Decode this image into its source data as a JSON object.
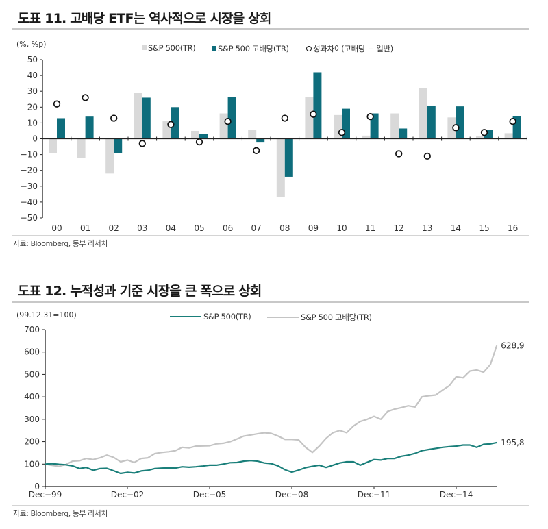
{
  "figure1": {
    "title": "도표 11. 고배당 ETF는 역사적으로 시장을 상회",
    "unit_label": "(%, %p)",
    "source": "자료: Bloomberg, 동부 리서치"
  },
  "figure2": {
    "title": "도표 12. 누적성과 기준 시장을 큰 폭으로 상회",
    "unit_label": "(99.12.31=100)",
    "source": "자료: Bloomberg, 동부 리서치"
  },
  "colors": {
    "sp500": "#d9d9d9",
    "high_dividend": "#0e6d7c",
    "line_sp500": "#1a7f7a",
    "line_high_dividend": "#c4c4c4"
  },
  "chart_data": [
    {
      "type": "bar",
      "title": "도표 11. 고배당 ETF는 역사적으로 시장을 상회",
      "ylabel": "(%, %p)",
      "xlabel": "",
      "ylim": [
        -50,
        50
      ],
      "yticks": [
        50,
        40,
        30,
        20,
        10,
        0,
        -10,
        -20,
        -30,
        -40,
        -50
      ],
      "ytick_labels": [
        "50",
        "40",
        "30",
        "20",
        "10",
        "0",
        "−10",
        "−20",
        "−30",
        "−40",
        "−50"
      ],
      "grid": false,
      "legend_position": "top",
      "categories": [
        "00",
        "01",
        "02",
        "03",
        "04",
        "05",
        "06",
        "07",
        "08",
        "09",
        "10",
        "11",
        "12",
        "13",
        "14",
        "15",
        "16"
      ],
      "series": [
        {
          "name": "S&P 500(TR)",
          "kind": "bar",
          "values": [
            -9,
            -12,
            -22,
            29,
            11,
            5,
            16,
            5.5,
            -37,
            26.5,
            15,
            2,
            16,
            32,
            13.5,
            1.5,
            3.5
          ]
        },
        {
          "name": "S&P 500 고배당(TR)",
          "kind": "bar",
          "values": [
            13,
            14,
            -9,
            26,
            20,
            3,
            26.5,
            -2,
            -24,
            42,
            19,
            16,
            6.5,
            21,
            20.5,
            5.5,
            14.5
          ]
        },
        {
          "name": "성과차이(고배당 − 일반)",
          "kind": "scatter",
          "values": [
            22,
            26,
            13,
            -3,
            9,
            -2,
            11,
            -7.5,
            13,
            15.5,
            4,
            14,
            -9.5,
            -11,
            7,
            4,
            11
          ]
        }
      ]
    },
    {
      "type": "line",
      "title": "도표 12. 누적성과 기준 시장을 큰 폭으로 상회",
      "ylabel": "(99.12.31=100)",
      "xlabel": "",
      "ylim": [
        0,
        700
      ],
      "yticks": [
        0,
        100,
        200,
        300,
        400,
        500,
        600,
        700
      ],
      "xtick_labels": [
        "Dec−99",
        "Dec−02",
        "Dec−05",
        "Dec−08",
        "Dec−11",
        "Dec−14"
      ],
      "x_range_years": [
        1999.92,
        2016.4
      ],
      "grid": false,
      "legend_position": "top",
      "x": [
        1999.92,
        2000.17,
        2000.42,
        2000.67,
        2000.92,
        2001.17,
        2001.42,
        2001.67,
        2001.92,
        2002.17,
        2002.42,
        2002.67,
        2002.92,
        2003.17,
        2003.42,
        2003.67,
        2003.92,
        2004.17,
        2004.42,
        2004.67,
        2004.92,
        2005.17,
        2005.42,
        2005.67,
        2005.92,
        2006.17,
        2006.42,
        2006.67,
        2006.92,
        2007.17,
        2007.42,
        2007.67,
        2007.92,
        2008.17,
        2008.42,
        2008.67,
        2008.92,
        2009.17,
        2009.42,
        2009.67,
        2009.92,
        2010.17,
        2010.42,
        2010.67,
        2010.92,
        2011.17,
        2011.42,
        2011.67,
        2011.92,
        2012.17,
        2012.42,
        2012.67,
        2012.92,
        2013.17,
        2013.42,
        2013.67,
        2013.92,
        2014.17,
        2014.42,
        2014.67,
        2014.92,
        2015.17,
        2015.42,
        2015.67,
        2015.92,
        2016.17,
        2016.4
      ],
      "series": [
        {
          "name": "S&P 500(TR)",
          "end_label": "195.8",
          "values": [
            100,
            102,
            99,
            97,
            92,
            80,
            85,
            72,
            80,
            81,
            70,
            58,
            63,
            60,
            69,
            72,
            80,
            82,
            83,
            82,
            88,
            86,
            88,
            91,
            95,
            95,
            100,
            106,
            107,
            113,
            116,
            113,
            105,
            102,
            92,
            75,
            64,
            73,
            84,
            90,
            95,
            85,
            95,
            105,
            110,
            110,
            95,
            108,
            120,
            118,
            125,
            125,
            135,
            140,
            148,
            160,
            165,
            170,
            175,
            178,
            180,
            185,
            185,
            175,
            188,
            190,
            195.8
          ]
        },
        {
          "name": "S&P 500 고배당(TR)",
          "end_label": "628.9",
          "values": [
            100,
            94,
            90,
            98,
            113,
            115,
            125,
            120,
            128,
            140,
            130,
            110,
            118,
            107,
            125,
            128,
            147,
            152,
            155,
            160,
            175,
            172,
            180,
            181,
            182,
            190,
            193,
            200,
            212,
            225,
            230,
            235,
            240,
            237,
            225,
            210,
            210,
            208,
            175,
            152,
            180,
            215,
            240,
            250,
            240,
            270,
            290,
            300,
            313,
            300,
            335,
            345,
            352,
            360,
            355,
            400,
            405,
            408,
            430,
            450,
            490,
            485,
            515,
            520,
            510,
            545,
            628.9
          ]
        }
      ]
    }
  ]
}
